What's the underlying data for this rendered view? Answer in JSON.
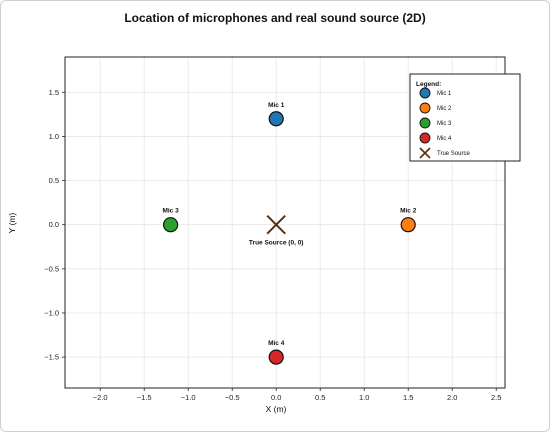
{
  "chart_data": {
    "type": "scatter",
    "title": "Location of microphones and real sound source (2D)",
    "xlabel": "X (m)",
    "ylabel": "Y (m)",
    "xlim": [
      -2.4,
      2.6
    ],
    "ylim": [
      -1.85,
      1.9
    ],
    "xticks": [
      -2.0,
      -1.5,
      -1.0,
      -0.5,
      0.0,
      0.5,
      1.0,
      1.5,
      2.0,
      2.5
    ],
    "yticks": [
      -1.5,
      -1.0,
      -0.5,
      0.0,
      0.5,
      1.0,
      1.5
    ],
    "xtick_labels": [
      "−2.0",
      "−1.5",
      "−1.0",
      "−0.5",
      "0.0",
      "0.5",
      "1.0",
      "1.5",
      "2.0",
      "2.5"
    ],
    "ytick_labels": [
      "−1.5",
      "−1.0",
      "−0.5",
      "0.0",
      "0.5",
      "1.0",
      "1.5"
    ],
    "grid": true,
    "legend_position": "top-right",
    "legend_title": "Legend:",
    "series": [
      {
        "name": "Mic 1",
        "label": "Mic 1",
        "x": 0.0,
        "y": 1.2,
        "marker": "circle",
        "color": "#1f77b4",
        "legend": "Mic 1"
      },
      {
        "name": "Mic 2",
        "label": "Mic 2",
        "x": 1.5,
        "y": 0.0,
        "marker": "circle",
        "color": "#ff7f0e",
        "legend": "Mic 2"
      },
      {
        "name": "Mic 3",
        "label": "Mic 3",
        "x": -1.2,
        "y": 0.0,
        "marker": "circle",
        "color": "#2ca02c",
        "legend": "Mic 3"
      },
      {
        "name": "Mic 4",
        "label": "Mic 4",
        "x": 0.0,
        "y": -1.5,
        "marker": "circle",
        "color": "#d62728",
        "legend": "Mic 4"
      },
      {
        "name": "True Source",
        "label": "True Source (0, 0)",
        "x": 0.0,
        "y": 0.0,
        "marker": "x",
        "color": "#5a2d0c",
        "legend": "True Source"
      }
    ]
  }
}
